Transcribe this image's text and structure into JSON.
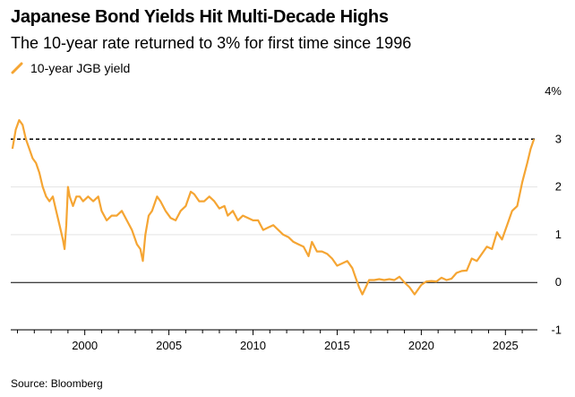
{
  "title": "Japanese Bond Yields Hit Multi-Decade Highs",
  "subtitle": "The 10-year rate returned to 3% for first time since 1996",
  "source": "Source: Bloomberg",
  "chart_data": {
    "type": "line",
    "title": "Japanese Bond Yields Hit Multi-Decade Highs",
    "subtitle": "The 10-year rate returned to 3% for first time since 1996",
    "xlabel": "",
    "ylabel": "",
    "xlim": [
      1995.6,
      2026.9
    ],
    "ylim": [
      -1,
      4
    ],
    "x_ticks": [
      "2000",
      "2005",
      "2010",
      "2015",
      "2020",
      "2025"
    ],
    "y_ticks": [
      "4%",
      "3",
      "2",
      "1",
      "0",
      "-1"
    ],
    "grid": "horizontal",
    "legend": "top-left",
    "reference_line": {
      "value": 3,
      "style": "dashed"
    },
    "baseline": 0,
    "series": [
      {
        "name": "10-year JGB yield",
        "color": "#f5a533",
        "x": [
          1995.7,
          1995.9,
          1996.1,
          1996.3,
          1996.5,
          1996.7,
          1996.9,
          1997.1,
          1997.3,
          1997.5,
          1997.7,
          1997.9,
          1998.1,
          1998.3,
          1998.5,
          1998.7,
          1998.8,
          1998.9,
          1999.0,
          1999.1,
          1999.3,
          1999.5,
          1999.7,
          1999.9,
          2000.2,
          2000.5,
          2000.8,
          2001.0,
          2001.3,
          2001.6,
          2001.9,
          2002.2,
          2002.5,
          2002.8,
          2003.1,
          2003.3,
          2003.45,
          2003.6,
          2003.8,
          2004.0,
          2004.3,
          2004.5,
          2004.8,
          2005.1,
          2005.4,
          2005.7,
          2006.0,
          2006.3,
          2006.5,
          2006.8,
          2007.1,
          2007.4,
          2007.7,
          2008.0,
          2008.3,
          2008.5,
          2008.8,
          2009.1,
          2009.4,
          2009.7,
          2010.0,
          2010.3,
          2010.6,
          2010.9,
          2011.2,
          2011.5,
          2011.8,
          2012.1,
          2012.4,
          2012.7,
          2013.0,
          2013.3,
          2013.5,
          2013.8,
          2014.1,
          2014.4,
          2014.7,
          2015.0,
          2015.3,
          2015.6,
          2015.9,
          2016.1,
          2016.3,
          2016.5,
          2016.7,
          2016.9,
          2017.2,
          2017.5,
          2017.8,
          2018.1,
          2018.4,
          2018.7,
          2019.0,
          2019.3,
          2019.6,
          2019.8,
          2020.0,
          2020.3,
          2020.6,
          2020.9,
          2021.2,
          2021.5,
          2021.8,
          2022.1,
          2022.4,
          2022.7,
          2023.0,
          2023.3,
          2023.6,
          2023.9,
          2024.2,
          2024.5,
          2024.8,
          2025.1,
          2025.4,
          2025.7,
          2026.0,
          2026.3,
          2026.5,
          2026.7
        ],
        "values": [
          2.8,
          3.2,
          3.4,
          3.3,
          3.0,
          2.8,
          2.6,
          2.5,
          2.3,
          2.0,
          1.8,
          1.7,
          1.8,
          1.5,
          1.2,
          0.9,
          0.7,
          1.2,
          2.0,
          1.8,
          1.6,
          1.8,
          1.8,
          1.7,
          1.8,
          1.7,
          1.8,
          1.5,
          1.3,
          1.4,
          1.4,
          1.5,
          1.3,
          1.1,
          0.8,
          0.7,
          0.45,
          1.0,
          1.4,
          1.5,
          1.8,
          1.7,
          1.5,
          1.35,
          1.3,
          1.5,
          1.6,
          1.9,
          1.85,
          1.7,
          1.7,
          1.8,
          1.7,
          1.55,
          1.6,
          1.4,
          1.5,
          1.3,
          1.4,
          1.35,
          1.3,
          1.3,
          1.1,
          1.15,
          1.2,
          1.1,
          1.0,
          0.95,
          0.85,
          0.8,
          0.75,
          0.55,
          0.85,
          0.65,
          0.65,
          0.6,
          0.5,
          0.35,
          0.4,
          0.45,
          0.3,
          0.1,
          -0.1,
          -0.25,
          -0.1,
          0.05,
          0.05,
          0.07,
          0.05,
          0.07,
          0.05,
          0.12,
          0.0,
          -0.1,
          -0.25,
          -0.15,
          -0.05,
          0.02,
          0.03,
          0.02,
          0.1,
          0.05,
          0.08,
          0.2,
          0.24,
          0.25,
          0.5,
          0.45,
          0.6,
          0.75,
          0.7,
          1.05,
          0.9,
          1.2,
          1.5,
          1.6,
          2.1,
          2.5,
          2.8,
          3.0
        ]
      }
    ]
  }
}
